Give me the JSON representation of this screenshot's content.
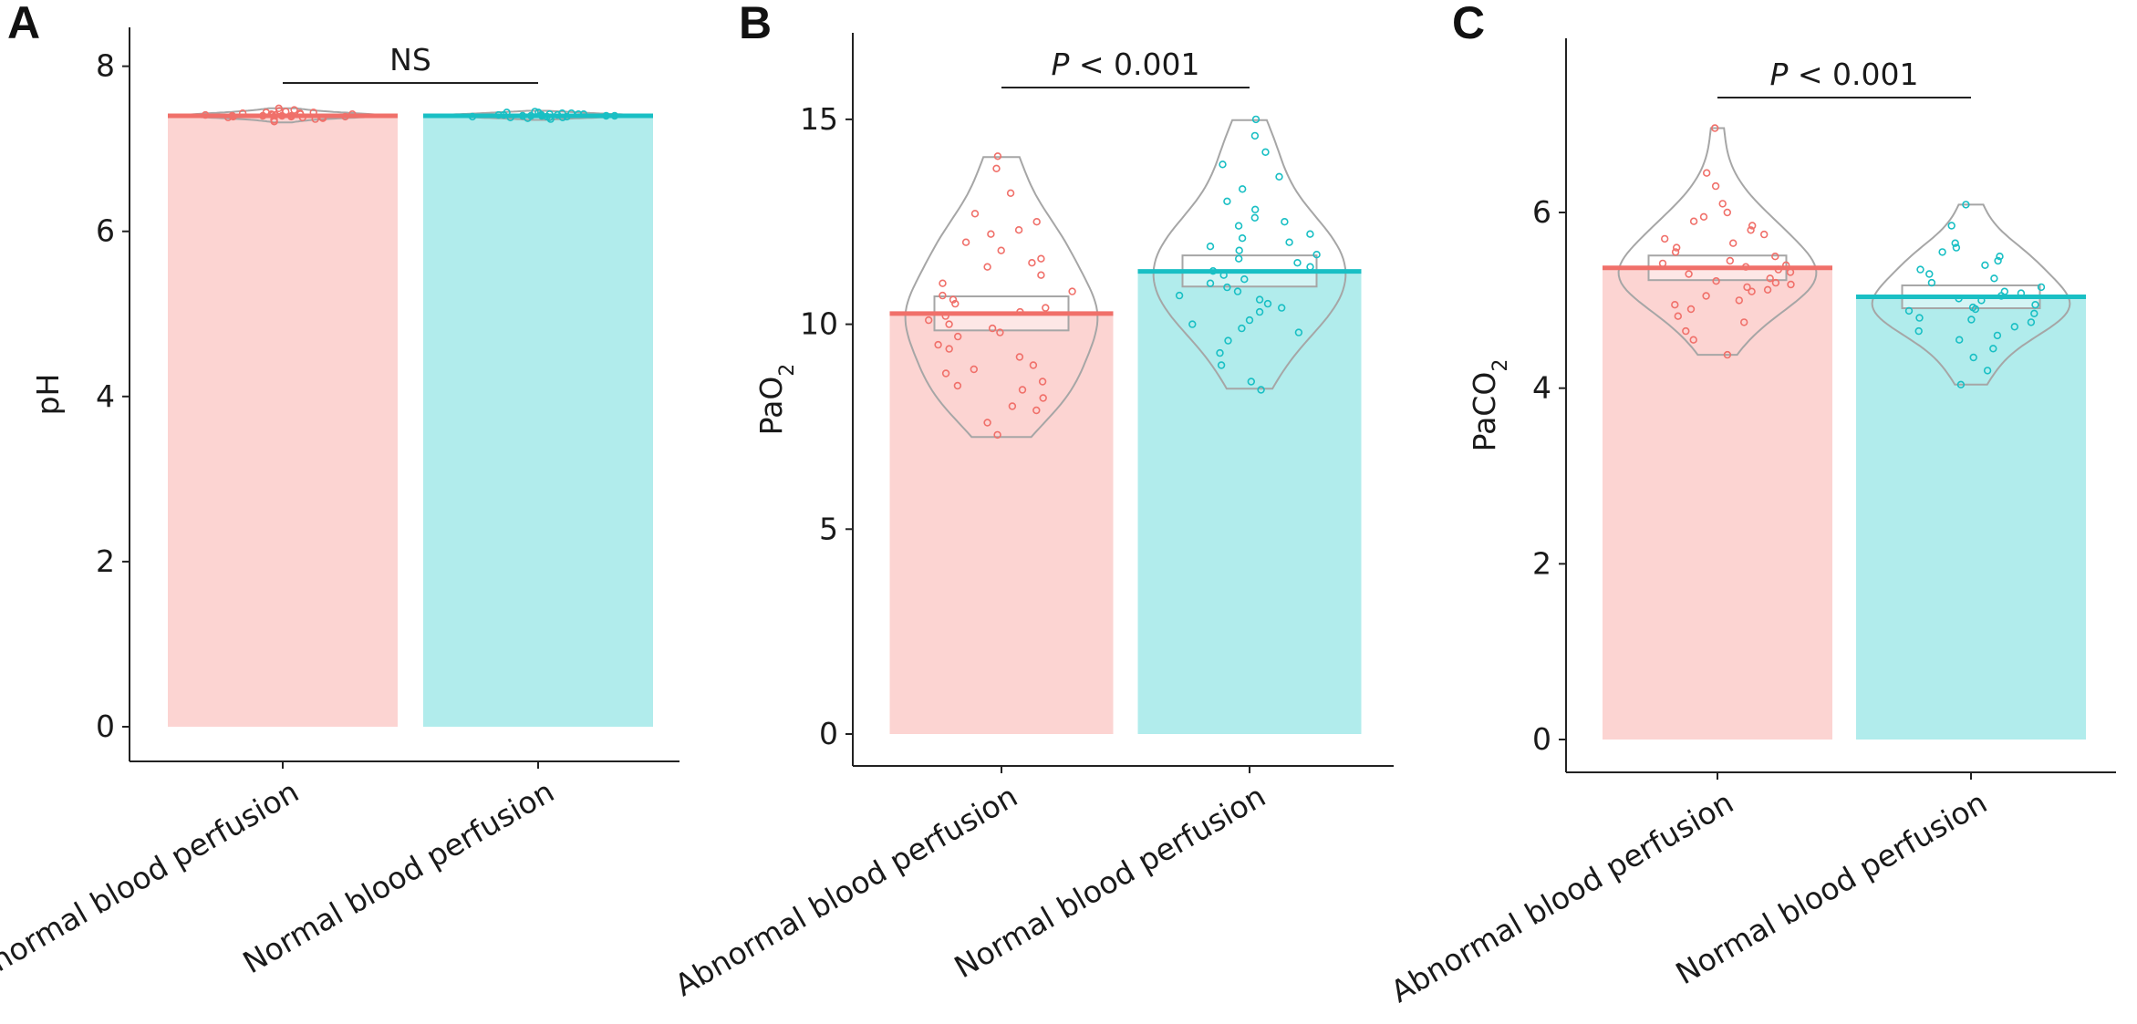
{
  "colors": {
    "abnormal_fill": "#fcd4d2",
    "abnormal_line": "#f0706a",
    "normal_fill": "#b1ecec",
    "normal_line": "#19bfc4",
    "violin": "#a6a6a6",
    "axis": "#222222"
  },
  "chart_data": [
    {
      "type": "bar",
      "panel": "A",
      "ylabel": "pH",
      "ylabel_sub": "",
      "ylabel_tail": "",
      "ylim": [
        0,
        8.25
      ],
      "yticks": [
        0,
        2,
        4,
        6,
        8
      ],
      "categories": [
        "Abnormal blood perfusion",
        "Normal blood perfusion"
      ],
      "values": [
        7.4,
        7.4
      ],
      "ci": [
        [
          7.39,
          7.41
        ],
        [
          7.39,
          7.41
        ]
      ],
      "violin_range": [
        [
          7.32,
          7.49
        ],
        [
          7.35,
          7.46
        ]
      ],
      "points": [
        [
          7.37,
          7.38,
          7.39,
          7.4,
          7.41,
          7.42,
          7.43,
          7.44,
          7.45,
          7.36,
          7.38,
          7.4,
          7.42,
          7.44,
          7.46,
          7.39,
          7.41,
          7.43,
          7.35,
          7.47,
          7.4,
          7.38,
          7.42,
          7.33,
          7.49,
          7.4,
          7.41,
          7.39
        ],
        [
          7.38,
          7.39,
          7.4,
          7.41,
          7.42,
          7.43,
          7.44,
          7.4,
          7.41,
          7.39,
          7.42,
          7.38,
          7.4,
          7.43,
          7.37,
          7.45,
          7.41,
          7.4,
          7.39,
          7.42,
          7.36,
          7.44,
          7.41,
          7.4,
          7.38
        ]
      ],
      "significance": {
        "label": "NS",
        "italic_p": false
      }
    },
    {
      "type": "bar",
      "panel": "B",
      "ylabel": "PaO",
      "ylabel_sub": "2",
      "ylabel_tail": "",
      "ylim": [
        0,
        16.8
      ],
      "yticks": [
        0,
        5,
        10,
        15
      ],
      "categories": [
        "Abnormal blood perfusion",
        "Normal blood perfusion"
      ],
      "values": [
        10.26,
        11.29
      ],
      "ci": [
        [
          9.85,
          10.68
        ],
        [
          10.92,
          11.68
        ]
      ],
      "violin_range": [
        [
          7.25,
          14.08
        ],
        [
          8.43,
          14.98
        ]
      ],
      "points": [
        [
          7.3,
          7.6,
          7.9,
          8.0,
          8.2,
          8.4,
          8.5,
          8.6,
          8.8,
          8.9,
          9.0,
          9.2,
          9.4,
          9.5,
          9.7,
          9.8,
          9.9,
          10.0,
          10.1,
          10.2,
          10.3,
          10.4,
          10.5,
          10.6,
          10.7,
          10.8,
          11.0,
          11.2,
          11.4,
          11.5,
          11.6,
          11.8,
          12.0,
          12.2,
          12.3,
          12.5,
          12.7,
          13.2,
          13.8,
          14.1
        ],
        [
          8.4,
          8.6,
          9.0,
          9.3,
          9.6,
          9.8,
          9.9,
          10.0,
          10.1,
          10.3,
          10.4,
          10.5,
          10.7,
          10.8,
          10.9,
          11.0,
          11.1,
          11.2,
          11.4,
          11.5,
          11.6,
          11.7,
          11.8,
          12.0,
          12.1,
          12.2,
          12.4,
          12.6,
          12.8,
          13.0,
          13.3,
          13.6,
          13.9,
          14.2,
          14.6,
          15.0,
          11.3,
          10.6,
          11.9,
          12.5
        ]
      ],
      "significance": {
        "label": "< 0.001",
        "italic_p": true
      }
    },
    {
      "type": "bar",
      "panel": "C",
      "ylabel": "PaCO",
      "ylabel_sub": "2",
      "ylabel_tail": "",
      "ylim": [
        0,
        7.9
      ],
      "yticks": [
        0,
        2,
        4,
        6
      ],
      "categories": [
        "Abnormal blood perfusion",
        "Normal blood perfusion"
      ],
      "values": [
        5.37,
        5.04
      ],
      "ci": [
        [
          5.23,
          5.51
        ],
        [
          4.91,
          5.17
        ]
      ],
      "violin_range": [
        [
          4.38,
          6.96
        ],
        [
          4.04,
          6.09
        ]
      ],
      "points": [
        [
          4.38,
          4.55,
          4.65,
          4.75,
          4.82,
          4.9,
          4.95,
          5.0,
          5.05,
          5.1,
          5.12,
          5.15,
          5.2,
          5.22,
          5.25,
          5.3,
          5.35,
          5.38,
          5.4,
          5.45,
          5.5,
          5.55,
          5.6,
          5.65,
          5.7,
          5.75,
          5.8,
          5.85,
          5.9,
          5.95,
          6.0,
          6.1,
          6.3,
          6.45,
          6.96,
          5.32,
          5.18,
          5.42
        ],
        [
          4.04,
          4.2,
          4.35,
          4.45,
          4.55,
          4.6,
          4.65,
          4.7,
          4.75,
          4.8,
          4.85,
          4.88,
          4.9,
          4.95,
          5.0,
          5.05,
          5.08,
          5.1,
          5.15,
          5.2,
          5.25,
          5.3,
          5.35,
          5.4,
          5.45,
          5.5,
          5.55,
          5.6,
          5.65,
          5.85,
          6.09,
          4.92,
          5.02,
          4.78
        ]
      ],
      "significance": {
        "label": "< 0.001",
        "italic_p": true
      }
    }
  ]
}
